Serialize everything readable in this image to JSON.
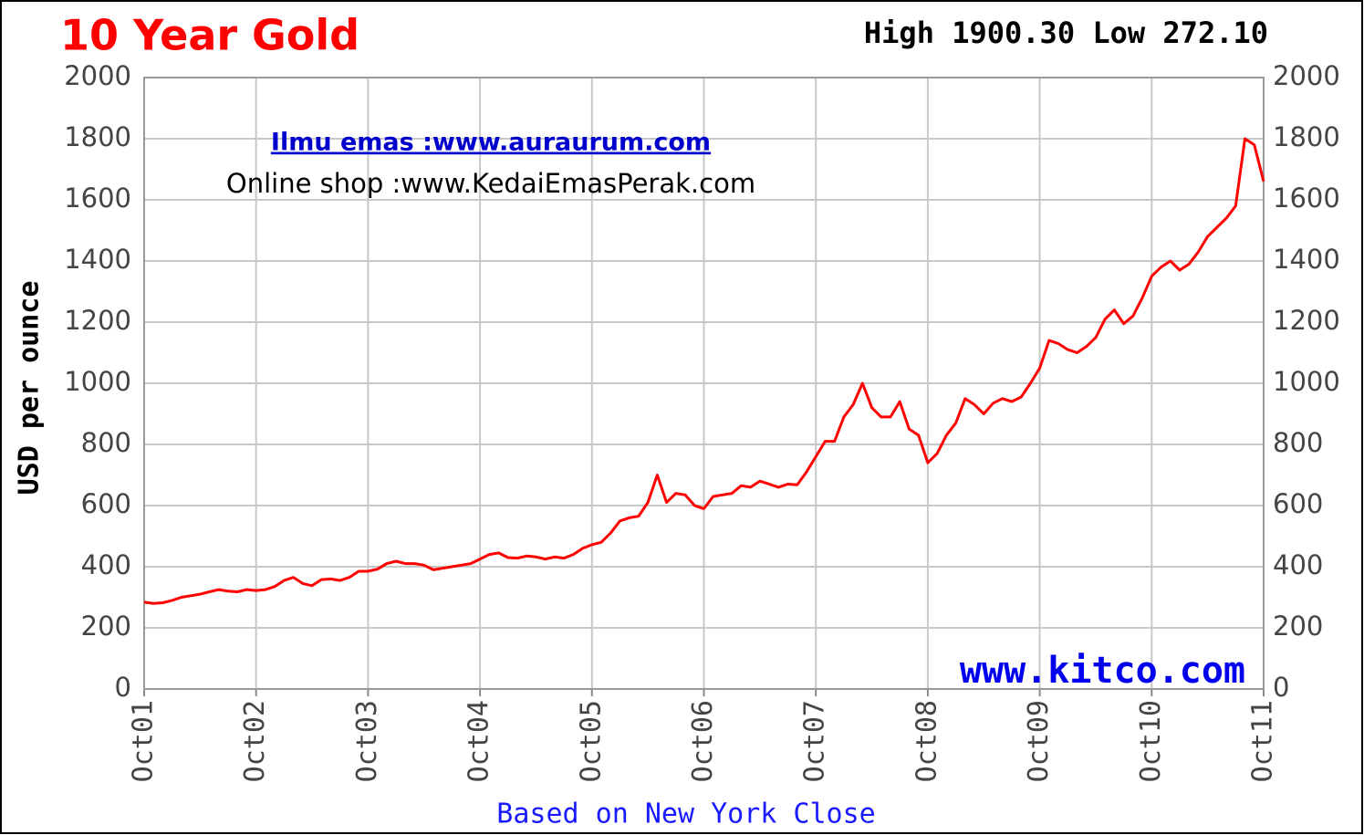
{
  "chart_data": {
    "type": "line",
    "title": "10 Year Gold",
    "subtitle": "High 1900.30 Low 272.10",
    "y_label": "USD per ounce",
    "x_label": "Based on New York Close",
    "annotations": [
      "Ilmu emas :www.auraurum.com",
      "Online shop :www.KedaiEmasPerak.com",
      "www.kitco.com"
    ],
    "x": [
      "2001-10",
      "2001-11",
      "2001-12",
      "2002-01",
      "2002-02",
      "2002-03",
      "2002-04",
      "2002-05",
      "2002-06",
      "2002-07",
      "2002-08",
      "2002-09",
      "2002-10",
      "2002-11",
      "2002-12",
      "2003-01",
      "2003-02",
      "2003-03",
      "2003-04",
      "2003-05",
      "2003-06",
      "2003-07",
      "2003-08",
      "2003-09",
      "2003-10",
      "2003-11",
      "2003-12",
      "2004-01",
      "2004-02",
      "2004-03",
      "2004-04",
      "2004-05",
      "2004-06",
      "2004-07",
      "2004-08",
      "2004-09",
      "2004-10",
      "2004-11",
      "2004-12",
      "2005-01",
      "2005-02",
      "2005-03",
      "2005-04",
      "2005-05",
      "2005-06",
      "2005-07",
      "2005-08",
      "2005-09",
      "2005-10",
      "2005-11",
      "2005-12",
      "2006-01",
      "2006-02",
      "2006-03",
      "2006-04",
      "2006-05",
      "2006-06",
      "2006-07",
      "2006-08",
      "2006-09",
      "2006-10",
      "2006-11",
      "2006-12",
      "2007-01",
      "2007-02",
      "2007-03",
      "2007-04",
      "2007-05",
      "2007-06",
      "2007-07",
      "2007-08",
      "2007-09",
      "2007-10",
      "2007-11",
      "2007-12",
      "2008-01",
      "2008-02",
      "2008-03",
      "2008-04",
      "2008-05",
      "2008-06",
      "2008-07",
      "2008-08",
      "2008-09",
      "2008-10",
      "2008-11",
      "2008-12",
      "2009-01",
      "2009-02",
      "2009-03",
      "2009-04",
      "2009-05",
      "2009-06",
      "2009-07",
      "2009-08",
      "2009-09",
      "2009-10",
      "2009-11",
      "2009-12",
      "2010-01",
      "2010-02",
      "2010-03",
      "2010-04",
      "2010-05",
      "2010-06",
      "2010-07",
      "2010-08",
      "2010-09",
      "2010-10",
      "2010-11",
      "2010-12",
      "2011-01",
      "2011-02",
      "2011-03",
      "2011-04",
      "2011-05",
      "2011-06",
      "2011-07",
      "2011-08",
      "2011-09",
      "2011-10"
    ],
    "series": [
      {
        "name": "Gold",
        "color": "#ff0000",
        "values": [
          284,
          280,
          282,
          290,
          300,
          305,
          310,
          318,
          325,
          320,
          318,
          325,
          322,
          325,
          335,
          355,
          365,
          345,
          338,
          358,
          360,
          355,
          365,
          385,
          385,
          392,
          410,
          418,
          410,
          410,
          405,
          390,
          395,
          400,
          405,
          410,
          425,
          440,
          445,
          430,
          428,
          435,
          432,
          425,
          432,
          428,
          440,
          460,
          472,
          480,
          510,
          550,
          560,
          565,
          610,
          700,
          610,
          640,
          635,
          600,
          590,
          630,
          635,
          640,
          665,
          660,
          680,
          670,
          660,
          670,
          668,
          710,
          760,
          810,
          810,
          890,
          930,
          1000,
          920,
          890,
          890,
          940,
          850,
          830,
          740,
          770,
          830,
          870,
          950,
          930,
          900,
          935,
          950,
          940,
          955,
          1000,
          1050,
          1140,
          1130,
          1110,
          1100,
          1120,
          1150,
          1210,
          1240,
          1195,
          1220,
          1280,
          1350,
          1380,
          1400,
          1370,
          1390,
          1430,
          1480,
          1510,
          1540,
          1580,
          1800,
          1780,
          1660
        ]
      }
    ],
    "xlim": [
      "2001-10",
      "2011-10"
    ],
    "xticks": [
      {
        "value": "2001-10",
        "label": "Oct01"
      },
      {
        "value": "2002-10",
        "label": "Oct02"
      },
      {
        "value": "2003-10",
        "label": "Oct03"
      },
      {
        "value": "2004-10",
        "label": "Oct04"
      },
      {
        "value": "2005-10",
        "label": "Oct05"
      },
      {
        "value": "2006-10",
        "label": "Oct06"
      },
      {
        "value": "2007-10",
        "label": "Oct07"
      },
      {
        "value": "2008-10",
        "label": "Oct08"
      },
      {
        "value": "2009-10",
        "label": "Oct09"
      },
      {
        "value": "2010-10",
        "label": "Oct10"
      },
      {
        "value": "2011-10",
        "label": "Oct11"
      }
    ],
    "ylim": [
      0,
      2000
    ],
    "yticks": [
      0,
      200,
      400,
      600,
      800,
      1000,
      1200,
      1400,
      1600,
      1800,
      2000
    ],
    "grid": true
  }
}
